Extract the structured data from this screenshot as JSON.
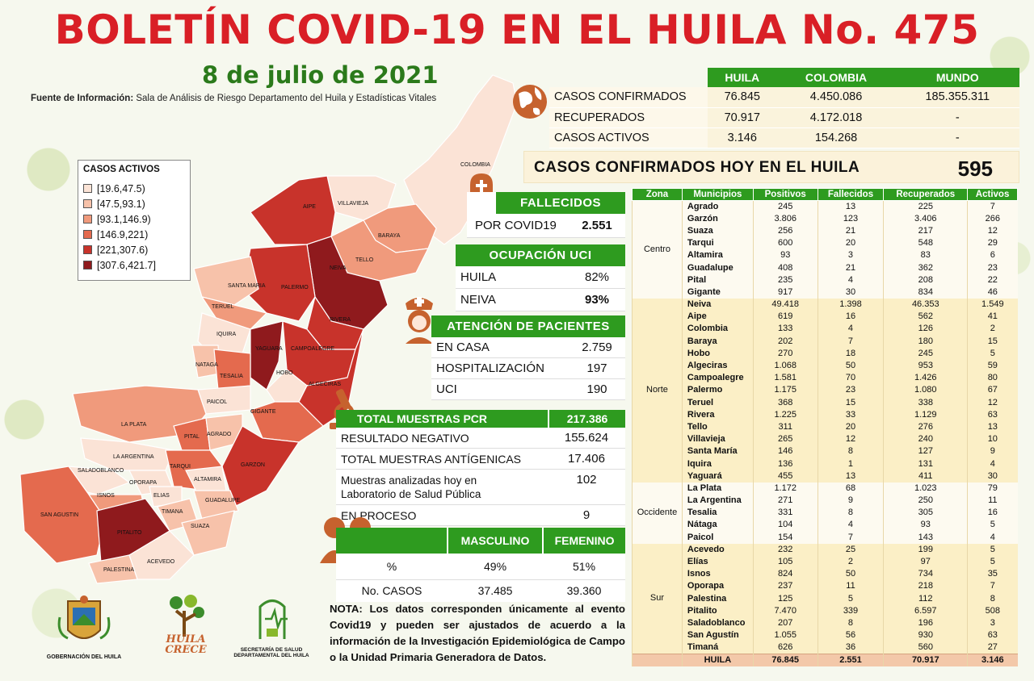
{
  "title": "BOLETÍN COVID-19 EN EL HUILA No. 475",
  "date": "8 de julio de 2021",
  "source_label": "Fuente de Información:",
  "source_text": "Sala de Análisis de Riesgo Departamento del Huila y Estadísticas Vitales",
  "summary": {
    "headers": [
      "HUILA",
      "COLOMBIA",
      "MUNDO"
    ],
    "rows": [
      {
        "label": "CASOS CONFIRMADOS",
        "huila": "76.845",
        "colombia": "4.450.086",
        "mundo": "185.355.311"
      },
      {
        "label": "RECUPERADOS",
        "huila": "70.917",
        "colombia": "4.172.018",
        "mundo": "-"
      },
      {
        "label": "CASOS ACTIVOS",
        "huila": "3.146",
        "colombia": "154.268",
        "mundo": "-"
      }
    ]
  },
  "today": {
    "label": "CASOS CONFIRMADOS  HOY EN EL HUILA",
    "value": "595"
  },
  "fallecidos": {
    "title": "FALLECIDOS",
    "label": "POR COVID19",
    "value": "2.551"
  },
  "uci": {
    "title": "OCUPACIÓN UCI",
    "rows": [
      {
        "k": "HUILA",
        "v": "82%"
      },
      {
        "k": "NEIVA",
        "v": "93%"
      }
    ]
  },
  "atencion": {
    "title": "ATENCIÓN DE PACIENTES",
    "rows": [
      {
        "k": "EN CASA",
        "v": "2.759"
      },
      {
        "k": "HOSPITALIZACIÓN",
        "v": "197"
      },
      {
        "k": "UCI",
        "v": "190"
      }
    ]
  },
  "pcr": {
    "title": "TOTAL MUESTRAS PCR",
    "total": "217.386",
    "rows": [
      {
        "k": "RESULTADO NEGATIVO",
        "v": "155.624"
      },
      {
        "k": "TOTAL MUESTRAS ANTÍGENICAS",
        "v": "17.406"
      },
      {
        "k": "Muestras analizadas hoy en Laboratorio de Salud Pública",
        "v": "102"
      },
      {
        "k": "EN PROCESO",
        "v": "9"
      }
    ]
  },
  "sexo": {
    "headers": [
      "MASCULINO",
      "FEMENINO"
    ],
    "rows": [
      {
        "k": "%",
        "m": "49%",
        "f": "51%"
      },
      {
        "k": "No. CASOS",
        "m": "37.485",
        "f": "39.360"
      }
    ]
  },
  "legend": {
    "title": "CASOS ACTIVOS",
    "items": [
      {
        "label": "[19.6,47.5)",
        "color": "#fbe3d6"
      },
      {
        "label": "[47.5,93.1)",
        "color": "#f7c2aa"
      },
      {
        "label": "[93.1,146.9)",
        "color": "#f09a7c"
      },
      {
        "label": "[146.9,221)",
        "color": "#e46a4e"
      },
      {
        "label": "[221,307.6)",
        "color": "#c8332b"
      },
      {
        "label": "[307.6,421.7]",
        "color": "#8f1a1d"
      }
    ]
  },
  "municipal": {
    "headers": [
      "Zona",
      "Municipios",
      "Positivos",
      "Fallecidos",
      "Recuperados",
      "Activos"
    ],
    "zones": [
      {
        "name": "Centro",
        "rows": [
          [
            "Agrado",
            "245",
            "13",
            "225",
            "7"
          ],
          [
            "Garzón",
            "3.806",
            "123",
            "3.406",
            "266"
          ],
          [
            "Suaza",
            "256",
            "21",
            "217",
            "12"
          ],
          [
            "Tarqui",
            "600",
            "20",
            "548",
            "29"
          ],
          [
            "Altamira",
            "93",
            "3",
            "83",
            "6"
          ],
          [
            "Guadalupe",
            "408",
            "21",
            "362",
            "23"
          ],
          [
            "Pital",
            "235",
            "4",
            "208",
            "22"
          ],
          [
            "Gigante",
            "917",
            "30",
            "834",
            "46"
          ]
        ]
      },
      {
        "name": "Norte",
        "rows": [
          [
            "Neiva",
            "49.418",
            "1.398",
            "46.353",
            "1.549"
          ],
          [
            "Aipe",
            "619",
            "16",
            "562",
            "41"
          ],
          [
            "Colombia",
            "133",
            "4",
            "126",
            "2"
          ],
          [
            "Baraya",
            "202",
            "7",
            "180",
            "15"
          ],
          [
            "Hobo",
            "270",
            "18",
            "245",
            "5"
          ],
          [
            "Algeciras",
            "1.068",
            "50",
            "953",
            "59"
          ],
          [
            "Campoalegre",
            "1.581",
            "70",
            "1.426",
            "80"
          ],
          [
            "Palermo",
            "1.175",
            "23",
            "1.080",
            "67"
          ],
          [
            "Teruel",
            "368",
            "15",
            "338",
            "12"
          ],
          [
            "Rivera",
            "1.225",
            "33",
            "1.129",
            "63"
          ],
          [
            "Tello",
            "311",
            "20",
            "276",
            "13"
          ],
          [
            "Villavieja",
            "265",
            "12",
            "240",
            "10"
          ],
          [
            "Santa María",
            "146",
            "8",
            "127",
            "9"
          ],
          [
            "Iquira",
            "136",
            "1",
            "131",
            "4"
          ],
          [
            "Yaguará",
            "455",
            "13",
            "411",
            "30"
          ]
        ]
      },
      {
        "name": "Occidente",
        "rows": [
          [
            "La Plata",
            "1.172",
            "68",
            "1.023",
            "79"
          ],
          [
            "La Argentina",
            "271",
            "9",
            "250",
            "11"
          ],
          [
            "Tesalia",
            "331",
            "8",
            "305",
            "16"
          ],
          [
            "Nátaga",
            "104",
            "4",
            "93",
            "5"
          ],
          [
            "Paicol",
            "154",
            "7",
            "143",
            "4"
          ]
        ]
      },
      {
        "name": "Sur",
        "rows": [
          [
            "Acevedo",
            "232",
            "25",
            "199",
            "5"
          ],
          [
            "Elías",
            "105",
            "2",
            "97",
            "5"
          ],
          [
            "Isnos",
            "824",
            "50",
            "734",
            "35"
          ],
          [
            "Oporapa",
            "237",
            "11",
            "218",
            "7"
          ],
          [
            "Palestina",
            "125",
            "5",
            "112",
            "8"
          ],
          [
            "Pitalito",
            "7.470",
            "339",
            "6.597",
            "508"
          ],
          [
            "Saladoblanco",
            "207",
            "8",
            "196",
            "3"
          ],
          [
            "San Agustín",
            "1.055",
            "56",
            "930",
            "63"
          ],
          [
            "Timaná",
            "626",
            "36",
            "560",
            "27"
          ]
        ]
      }
    ],
    "total": [
      "HUILA",
      "76.845",
      "2.551",
      "70.917",
      "3.146"
    ]
  },
  "map_labels": [
    "COLOMBIA",
    "VILLAVIEJA",
    "BARAYA",
    "AIPE",
    "TELLO",
    "NEIVA",
    "SANTA MARIA",
    "PALERMO",
    "TERUEL",
    "RIVERA",
    "IQUIRA",
    "YAGUARA",
    "CAMPOALEGRE",
    "NATAGA",
    "TESALIA",
    "HOBO",
    "ALGECIRAS",
    "PAICOL",
    "LA PLATA",
    "GIGANTE",
    "PITAL",
    "AGRADO",
    "LA ARGENTINA",
    "SALADOBLANCO",
    "OPORAPA",
    "TARQUI",
    "GARZON",
    "ISNOS",
    "ELIAS",
    "ALTAMIRA",
    "SAN AGUSTIN",
    "TIMANA",
    "GUADALUPE",
    "SUAZA",
    "PITALITO",
    "ACEVEDO",
    "PALESTINA"
  ],
  "logos": {
    "gobernacion": "GOBERNACIÓN DEL HUILA",
    "huila_crece": "HUILA CRECE",
    "secretaria": "SECRETARÍA DE SALUD DEPARTAMENTAL DEL HUILA"
  },
  "note": {
    "label": "NOTA:",
    "text": "Los datos corresponden únicamente al evento Covid19 y pueden ser ajustados de acuerdo a la información de la Investigación Epidemiológica de Campo o la Unidad Primaria Generadora de Datos."
  }
}
